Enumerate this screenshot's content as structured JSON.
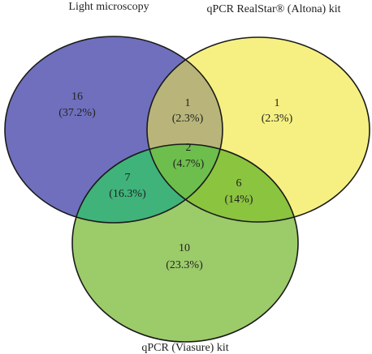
{
  "sets": [
    {
      "id": "light",
      "label": "Light microscopy",
      "color": "#6F6FBE"
    },
    {
      "id": "altona",
      "label": "qPCR RealStar® (Altona) kit",
      "color": "#F6F082"
    },
    {
      "id": "viasure",
      "label": "qPCR (Viasure) kit",
      "color": "#9CCB6A"
    }
  ],
  "overlap_colors": {
    "light_altona": "#B9B57A",
    "light_viasure": "#3FB37A",
    "altona_viasure": "#8BC43F",
    "all_three": "#6DBE4C"
  },
  "regions": {
    "light_only": {
      "count": "16",
      "percent": "(37.2%)"
    },
    "altona_only": {
      "count": "1",
      "percent": "(2.3%)"
    },
    "light_altona": {
      "count": "1",
      "percent": "(2.3%)"
    },
    "all_three": {
      "count": "2",
      "percent": "(4.7%)"
    },
    "light_viasure": {
      "count": "7",
      "percent": "(16.3%)"
    },
    "altona_viasure": {
      "count": "6",
      "percent": "(14%)"
    },
    "viasure_only": {
      "count": "10",
      "percent": "(23.3%)"
    }
  },
  "outline_color": "#1a1a1a"
}
